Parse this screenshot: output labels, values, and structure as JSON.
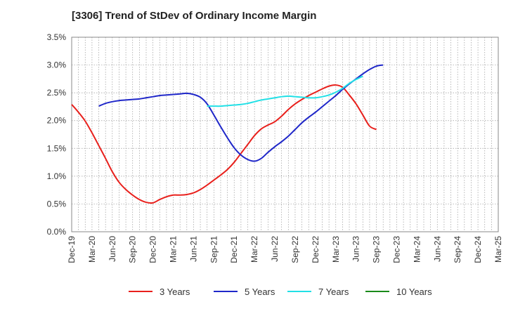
{
  "chart_data": {
    "type": "line",
    "title": "[3306]  Trend of StDev of Ordinary Income Margin",
    "xlabel": "",
    "ylabel": "",
    "ylim": [
      0,
      3.5
    ],
    "y_ticks": [
      "0.0%",
      "0.5%",
      "1.0%",
      "1.5%",
      "2.0%",
      "2.5%",
      "3.0%",
      "3.5%"
    ],
    "x_ticks": [
      "Dec-19",
      "Mar-20",
      "Jun-20",
      "Sep-20",
      "Dec-20",
      "Mar-21",
      "Jun-21",
      "Sep-21",
      "Dec-21",
      "Mar-22",
      "Jun-22",
      "Sep-22",
      "Dec-22",
      "Mar-23",
      "Jun-23",
      "Sep-23",
      "Dec-23",
      "Mar-24",
      "Jun-24",
      "Sep-24",
      "Dec-24",
      "Mar-25"
    ],
    "grid": true,
    "legend_position": "bottom",
    "series": [
      {
        "name": "3 Years",
        "color": "#e8201c",
        "start_index": 0,
        "values": [
          2.29,
          2.15,
          1.99,
          1.78,
          1.55,
          1.32,
          1.08,
          0.89,
          0.76,
          0.66,
          0.58,
          0.53,
          0.52,
          0.58,
          0.63,
          0.66,
          0.66,
          0.67,
          0.7,
          0.76,
          0.84,
          0.93,
          1.02,
          1.12,
          1.25,
          1.41,
          1.57,
          1.73,
          1.85,
          1.92,
          1.98,
          2.08,
          2.2,
          2.3,
          2.38,
          2.45,
          2.51,
          2.57,
          2.62,
          2.64,
          2.6,
          2.46,
          2.3,
          2.1,
          1.9,
          1.84
        ]
      },
      {
        "name": "5 Years",
        "color": "#1f27c9",
        "start_index": 4,
        "values": [
          2.26,
          2.31,
          2.34,
          2.36,
          2.37,
          2.38,
          2.39,
          2.41,
          2.43,
          2.45,
          2.46,
          2.47,
          2.48,
          2.49,
          2.47,
          2.42,
          2.3,
          2.1,
          1.89,
          1.69,
          1.51,
          1.38,
          1.3,
          1.27,
          1.32,
          1.43,
          1.53,
          1.62,
          1.72,
          1.84,
          1.96,
          2.06,
          2.15,
          2.25,
          2.35,
          2.45,
          2.56,
          2.66,
          2.75,
          2.84,
          2.92,
          2.98,
          3.0
        ]
      },
      {
        "name": "7 Years",
        "color": "#22e0e6",
        "start_index": 20,
        "values": [
          2.26,
          2.26,
          2.26,
          2.27,
          2.28,
          2.29,
          2.31,
          2.34,
          2.37,
          2.39,
          2.41,
          2.43,
          2.44,
          2.43,
          2.42,
          2.41,
          2.41,
          2.43,
          2.46,
          2.51,
          2.58,
          2.67,
          2.74,
          2.8
        ]
      },
      {
        "name": "10 Years",
        "color": "#1a8a1a",
        "start_index": 0,
        "values": []
      }
    ]
  }
}
